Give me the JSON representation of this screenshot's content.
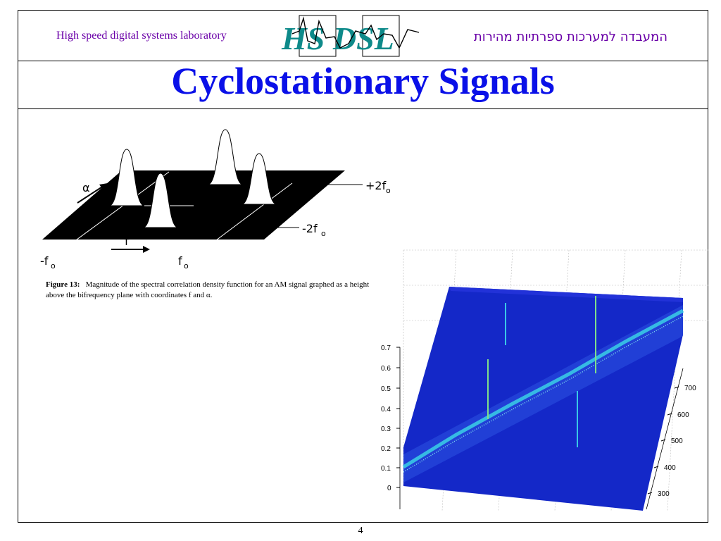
{
  "header": {
    "lab_name_en": "High speed digital systems laboratory",
    "lab_name_he": "המעבדה למערכות ספרתיות מהירות",
    "logo_text": "HS DSL"
  },
  "slide": {
    "title": "Cyclostationary Signals",
    "page_number": "4"
  },
  "figure1": {
    "labels": {
      "alpha": "α",
      "f": "f",
      "plus_2f0": "+2f",
      "minus_2f0": "-2f",
      "minus_f0": "-f",
      "f0": "f",
      "subscript": "o"
    },
    "caption_label": "Figure 13:",
    "caption_text": "Magnitude of the spectral correlation density function for an AM signal graphed as a height above the bifrequency plane with coordinates f and α."
  },
  "figure2": {
    "z_ticks": [
      "0.7",
      "0.6",
      "0.5",
      "0.4",
      "0.3",
      "0.2",
      "0.1",
      "0"
    ],
    "y_ticks": [
      "700",
      "600",
      "500",
      "400",
      "300"
    ],
    "colors": {
      "surface": "#1428c8",
      "ridge": "#39c8e6",
      "peak": "#7fe08a"
    }
  }
}
